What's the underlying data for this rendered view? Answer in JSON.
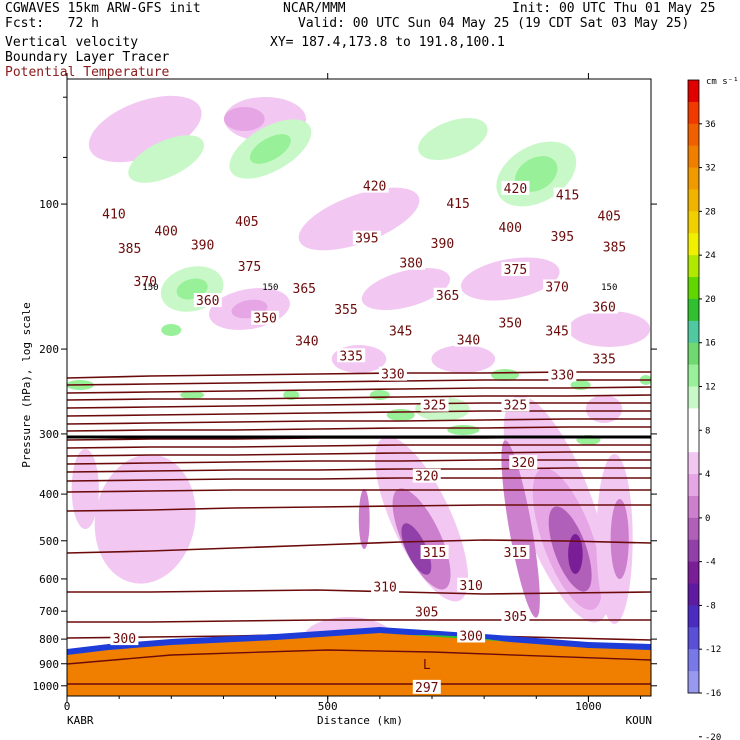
{
  "header": {
    "model": "CGWAVES 15km ARW-GFS init",
    "center": "NCAR/MMM",
    "init": "Init: 00 UTC Thu 01 May 25",
    "fcst": "Fcst:   72 h",
    "valid": "Valid: 00 UTC Sun 04 May 25 (19 CDT Sat 03 May 25)",
    "field1": "Vertical velocity",
    "xy": "XY= 187.4,173.8 to 191.8,100.1",
    "field2": "Boundary Layer Tracer",
    "field3": "Potential Temperature"
  },
  "colors": {
    "theta_line": "#6b0a0a",
    "theta_label": "#8b1a1a",
    "terrain": "#f07f00"
  },
  "chart_data": {
    "type": "contour",
    "xlabel": "Distance (km)",
    "ylabel": "Pressure (hPa), log scale",
    "xlim": [
      0,
      1120
    ],
    "ylim_hpa": [
      1050,
      55
    ],
    "x_ticks": [
      "0",
      "500",
      "1000"
    ],
    "x_end_labels": [
      "KABR",
      "KOUN"
    ],
    "y_ticks": [
      "100",
      "200",
      "300",
      "400",
      "500",
      "600",
      "700",
      "800",
      "900",
      "1000"
    ],
    "theta_labels": [
      {
        "text": "410",
        "x": 90,
        "p": 105
      },
      {
        "text": "405",
        "x": 345,
        "p": 109
      },
      {
        "text": "420",
        "x": 590,
        "p": 92
      },
      {
        "text": "415",
        "x": 750,
        "p": 100
      },
      {
        "text": "420",
        "x": 860,
        "p": 93
      },
      {
        "text": "415",
        "x": 960,
        "p": 96
      },
      {
        "text": "405",
        "x": 1040,
        "p": 106
      },
      {
        "text": "400",
        "x": 190,
        "p": 114
      },
      {
        "text": "395",
        "x": 575,
        "p": 118
      },
      {
        "text": "400",
        "x": 850,
        "p": 112
      },
      {
        "text": "395",
        "x": 950,
        "p": 117
      },
      {
        "text": "385",
        "x": 1050,
        "p": 123
      },
      {
        "text": "385",
        "x": 120,
        "p": 124
      },
      {
        "text": "390",
        "x": 260,
        "p": 122
      },
      {
        "text": "390",
        "x": 720,
        "p": 121
      },
      {
        "text": "380",
        "x": 660,
        "p": 133
      },
      {
        "text": "375",
        "x": 860,
        "p": 137
      },
      {
        "text": "370",
        "x": 150,
        "p": 145
      },
      {
        "text": "375",
        "x": 350,
        "p": 135
      },
      {
        "text": "365",
        "x": 455,
        "p": 150
      },
      {
        "text": "365",
        "x": 730,
        "p": 155
      },
      {
        "text": "370",
        "x": 940,
        "p": 149
      },
      {
        "text": "360",
        "x": 1030,
        "p": 164
      },
      {
        "text": "360",
        "x": 270,
        "p": 159
      },
      {
        "text": "350",
        "x": 380,
        "p": 173
      },
      {
        "text": "355",
        "x": 535,
        "p": 166
      },
      {
        "text": "350",
        "x": 850,
        "p": 177
      },
      {
        "text": "345",
        "x": 640,
        "p": 184
      },
      {
        "text": "345",
        "x": 940,
        "p": 184
      },
      {
        "text": "340",
        "x": 460,
        "p": 193
      },
      {
        "text": "340",
        "x": 770,
        "p": 192
      },
      {
        "text": "335",
        "x": 545,
        "p": 207
      },
      {
        "text": "335",
        "x": 1030,
        "p": 210
      },
      {
        "text": "330",
        "x": 625,
        "p": 226
      },
      {
        "text": "330",
        "x": 950,
        "p": 227
      },
      {
        "text": "325",
        "x": 705,
        "p": 262
      },
      {
        "text": "325",
        "x": 860,
        "p": 262
      },
      {
        "text": "320",
        "x": 690,
        "p": 368
      },
      {
        "text": "320",
        "x": 875,
        "p": 345
      },
      {
        "text": "315",
        "x": 705,
        "p": 530
      },
      {
        "text": "315",
        "x": 860,
        "p": 530
      },
      {
        "text": "310",
        "x": 610,
        "p": 625
      },
      {
        "text": "310",
        "x": 775,
        "p": 620
      },
      {
        "text": "305",
        "x": 690,
        "p": 705
      },
      {
        "text": "305",
        "x": 860,
        "p": 720
      },
      {
        "text": "300",
        "x": 110,
        "p": 800
      },
      {
        "text": "300",
        "x": 775,
        "p": 790
      },
      {
        "text": "297",
        "x": 690,
        "p": 1010
      }
    ],
    "bl_labels": [
      {
        "text": "150",
        "x": 160,
        "p": 148
      },
      {
        "text": "150",
        "x": 390,
        "p": 148
      },
      {
        "text": "150",
        "x": 1040,
        "p": 148
      }
    ],
    "low_marker": {
      "text": "L",
      "x": 690,
      "p": 905
    },
    "colorbar": {
      "unit": "cm s⁻¹",
      "ticks": [
        "36",
        "32",
        "28",
        "24",
        "20",
        "16",
        "12",
        "8",
        "4",
        "0",
        "-4",
        "-8",
        "-12",
        "-16",
        "-20"
      ],
      "colors": [
        "#e00000",
        "#f03a00",
        "#f06000",
        "#f07f00",
        "#f09a00",
        "#f0b400",
        "#f0d000",
        "#f0f000",
        "#b0e800",
        "#60d800",
        "#30c030",
        "#50c8a0",
        "#70d870",
        "#98f098",
        "#c8f8c8",
        "#ffffff",
        "#ffffff",
        "#f2c8f2",
        "#e6a6e6",
        "#cc7fcc",
        "#b060b8",
        "#9040a8",
        "#7a1e98",
        "#5e1aa0",
        "#4a2cc0",
        "#5a50d8",
        "#7878e8",
        "#9898f0"
      ]
    },
    "grid": false
  }
}
